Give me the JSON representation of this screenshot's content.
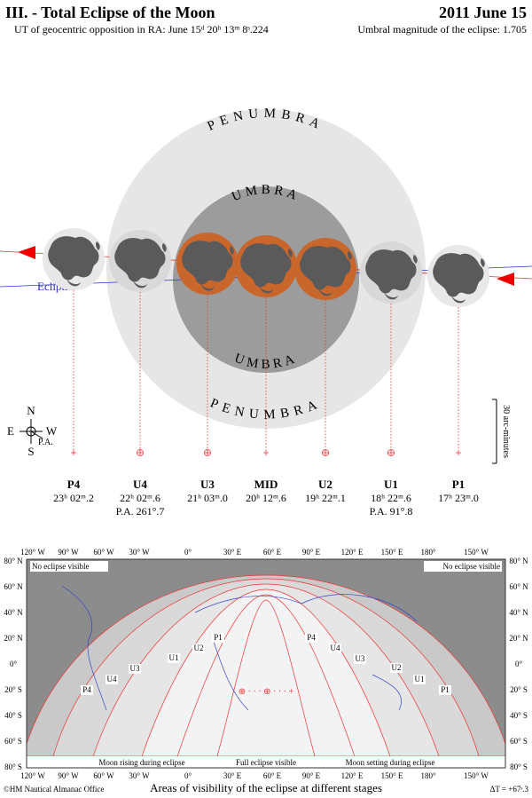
{
  "header": {
    "title": "III. - Total Eclipse of the Moon",
    "date": "2011 June 15",
    "opposition": "UT of geocentric opposition in RA: June 15ᵈ 20ʰ 13ᵐ 8ˢ.224",
    "magnitude": "Umbral magnitude of the eclipse: 1.705"
  },
  "diagram": {
    "penumbra_top": "PENUMBRA",
    "penumbra_bottom": "PENUMBRA",
    "umbra_top": "UMBRA",
    "umbra_bottom": "UMBRA",
    "ecliptic": "Ecliptic",
    "scale": "30 arc-minutes",
    "compass": {
      "n": "N",
      "s": "S",
      "e": "E",
      "w": "W",
      "pa": "P.A."
    }
  },
  "contacts": [
    {
      "label": "P4",
      "time": "23ʰ 02ᵐ.2"
    },
    {
      "label": "U4",
      "time": "22ʰ 02ᵐ.6",
      "pa": "P.A. 261°.7"
    },
    {
      "label": "U3",
      "time": "21ʰ 03ᵐ.0"
    },
    {
      "label": "MID",
      "time": "20ʰ 12ᵐ.6"
    },
    {
      "label": "U2",
      "time": "19ʰ 22ᵐ.1"
    },
    {
      "label": "U1",
      "time": "18ʰ 22ᵐ.6",
      "pa": "P.A. 91°.8"
    },
    {
      "label": "P1",
      "time": "17ʰ 23ᵐ.0"
    }
  ],
  "map": {
    "longitudes": [
      "120° W",
      "90° W",
      "60° W",
      "30° W",
      "0°",
      "30° E",
      "60° E",
      "90° E",
      "120° E",
      "150° E",
      "180°",
      "150° W"
    ],
    "latitudes": [
      "80° N",
      "60° N",
      "40° N",
      "20° N",
      "0°",
      "20° S",
      "40° S",
      "60° S",
      "80° S"
    ],
    "notes": {
      "no_eclipse_left": "No eclipse visible",
      "no_eclipse_right": "No eclipse visible",
      "rising": "Moon rising during eclipse",
      "full": "Full eclipse visible",
      "setting": "Moon setting during eclipse"
    },
    "curve_labels_left": [
      "P4",
      "U4",
      "U3",
      "U1",
      "U2",
      "P1"
    ],
    "curve_labels_right": [
      "P4",
      "U4",
      "U3",
      "U2",
      "U1",
      "P1"
    ]
  },
  "footer": {
    "credit": "©HM Nautical Almanac Office",
    "caption": "Areas of visibility of the eclipse at different stages",
    "delta_t": "ΔT = +67ˢ.3"
  }
}
